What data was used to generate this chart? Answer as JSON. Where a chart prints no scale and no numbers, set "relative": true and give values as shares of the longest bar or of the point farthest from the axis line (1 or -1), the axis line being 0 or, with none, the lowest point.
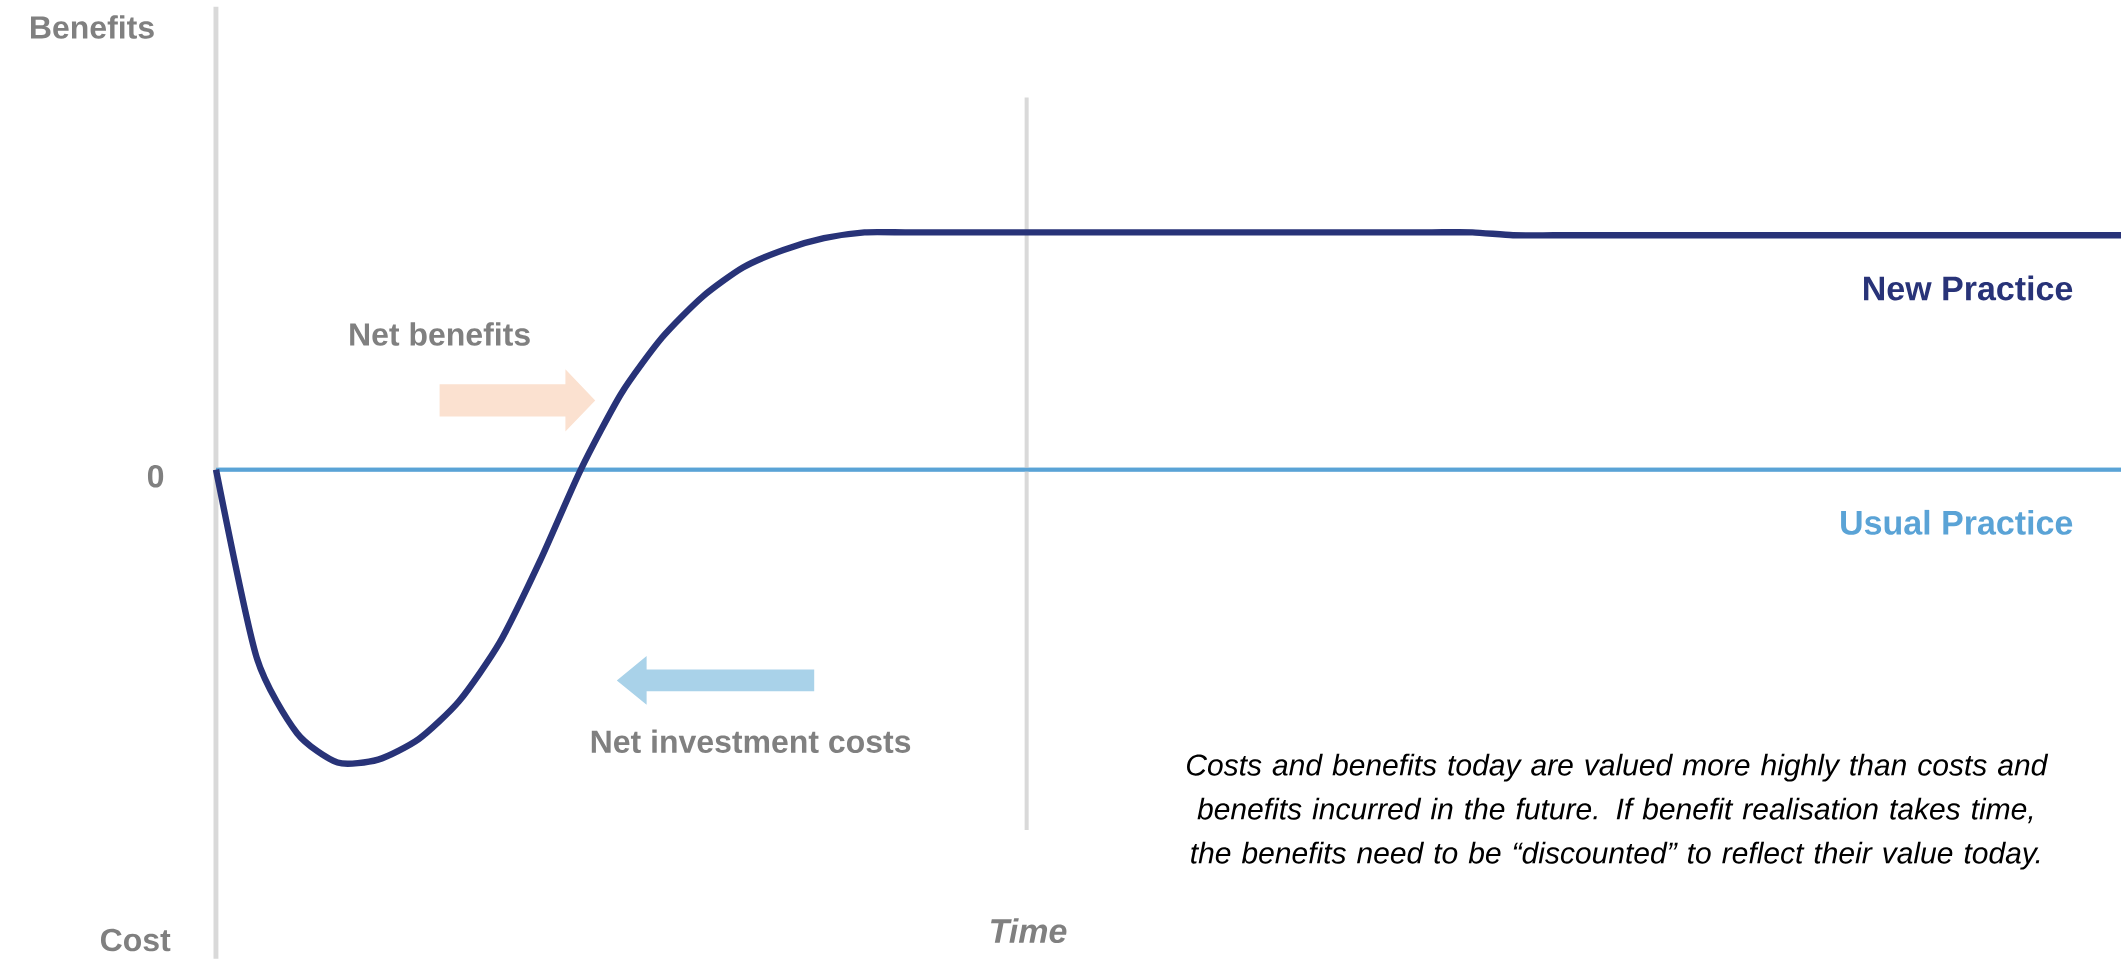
{
  "chart_data": {
    "type": "line",
    "relative": true,
    "xlabel": "Time",
    "categories": [
      null,
      null,
      null,
      null,
      null,
      null,
      null,
      null,
      null,
      null,
      null,
      null,
      null,
      null,
      null,
      null,
      null,
      null,
      null,
      null,
      null,
      null,
      null,
      null,
      null,
      null,
      null,
      null,
      null,
      null,
      null,
      null,
      null,
      null,
      null,
      null,
      null,
      null,
      null,
      null,
      null,
      null,
      null,
      null,
      null,
      null,
      null,
      null
    ],
    "series": [
      {
        "name": "New Practice",
        "color": "#283378",
        "values": [
          0,
          -0.64,
          -0.9,
          -1,
          -0.99,
          -0.92,
          -0.79,
          -0.59,
          -0.31,
          0,
          0.26,
          0.45,
          0.59,
          0.69,
          0.75,
          0.79,
          0.81,
          0.81,
          0.81,
          0.81,
          0.81,
          0.81,
          0.81,
          0.81,
          0.81,
          0.81,
          0.81,
          0.81,
          0.81,
          0.81,
          0.81,
          0.81,
          0.8,
          0.8,
          0.8,
          0.8,
          0.8,
          0.8,
          0.8,
          0.8,
          0.8,
          0.8,
          0.8,
          0.8,
          0.8,
          0.8,
          0.8,
          0.8
        ]
      }
    ],
    "ref_lines": [
      {
        "axis": "y",
        "value": 0,
        "label": "Usual Practice",
        "color": "#5aa3d6"
      }
    ],
    "annotations": [
      "Benefits",
      "Cost",
      "0",
      "Net benefits",
      "Net investment costs",
      "Costs and benefits today are valued more highly than costs and benefits incurred in the future. If benefit realisation takes time, the benefits need to be “discounted” to reflect their value today."
    ]
  }
}
